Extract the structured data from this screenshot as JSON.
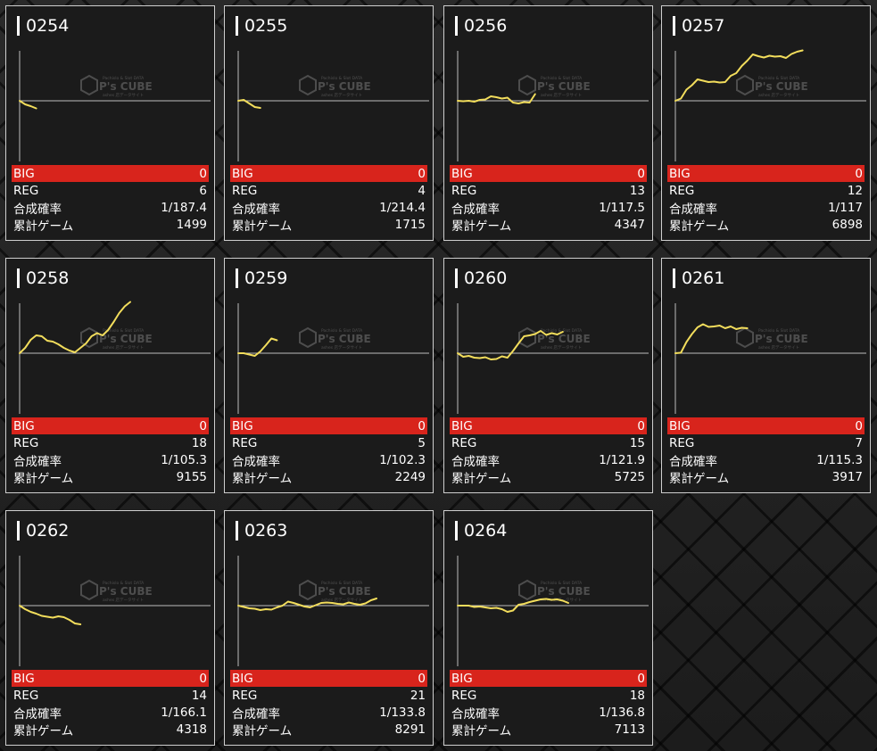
{
  "labels": {
    "big": "BIG",
    "reg": "REG",
    "rate": "合成確率",
    "games": "累計ゲーム"
  },
  "watermark": {
    "tagline": "Pachislo & Slot DATA",
    "brand": "P's CUBE",
    "sub": "ashes 店データサイト"
  },
  "colors": {
    "line": "#f2dd5c",
    "big_bar": "#d8241c",
    "panel": "#1b1b1b"
  },
  "machines": [
    {
      "id": "0254",
      "big": "0",
      "reg": "6",
      "rate": "1/187.4",
      "games": "1499",
      "trend": [
        0,
        -80,
        -120,
        -170
      ]
    },
    {
      "id": "0255",
      "big": "0",
      "reg": "4",
      "rate": "1/214.4",
      "games": "1715",
      "trend": [
        0,
        20,
        -60,
        -140,
        -160
      ]
    },
    {
      "id": "0256",
      "big": "0",
      "reg": "13",
      "rate": "1/117.5",
      "games": "4347",
      "trend": [
        0,
        -10,
        0,
        -20,
        20,
        30,
        100,
        80,
        50,
        70,
        -40,
        -60,
        -30,
        -40,
        150
      ]
    },
    {
      "id": "0257",
      "big": "0",
      "reg": "12",
      "rate": "1/117",
      "games": "6898",
      "trend": [
        0,
        50,
        250,
        350,
        480,
        450,
        420,
        430,
        410,
        420,
        560,
        620,
        780,
        900,
        1040,
        1000,
        970,
        1010,
        990,
        1000,
        960,
        1050,
        1100,
        1130
      ]
    },
    {
      "id": "0258",
      "big": "0",
      "reg": "18",
      "rate": "1/105.3",
      "games": "9155",
      "trend": [
        0,
        120,
        300,
        400,
        380,
        280,
        260,
        200,
        120,
        60,
        20,
        120,
        220,
        380,
        450,
        400,
        520,
        700,
        900,
        1050,
        1150
      ]
    },
    {
      "id": "0259",
      "big": "0",
      "reg": "5",
      "rate": "1/102.3",
      "games": "2249",
      "trend": [
        0,
        0,
        -30,
        -60,
        40,
        180,
        330,
        290
      ]
    },
    {
      "id": "0260",
      "big": "0",
      "reg": "15",
      "rate": "1/121.9",
      "games": "5725",
      "trend": [
        0,
        -80,
        -60,
        -100,
        -110,
        -90,
        -140,
        -130,
        -70,
        -100,
        50,
        220,
        380,
        400,
        430,
        500,
        410,
        450,
        420,
        480
      ]
    },
    {
      "id": "0261",
      "big": "0",
      "reg": "7",
      "rate": "1/115.3",
      "games": "3917",
      "trend": [
        0,
        10,
        250,
        430,
        580,
        650,
        590,
        600,
        620,
        560,
        600,
        540,
        570,
        560
      ]
    },
    {
      "id": "0262",
      "big": "0",
      "reg": "14",
      "rate": "1/166.1",
      "games": "4318",
      "trend": [
        0,
        -80,
        -140,
        -180,
        -230,
        -250,
        -270,
        -240,
        -260,
        -320,
        -400,
        -420
      ]
    },
    {
      "id": "0263",
      "big": "0",
      "reg": "21",
      "rate": "1/133.8",
      "games": "8291",
      "trend": [
        0,
        -30,
        -60,
        -70,
        -100,
        -80,
        -90,
        -40,
        0,
        90,
        60,
        20,
        -20,
        -40,
        10,
        60,
        70,
        60,
        40,
        30,
        70,
        40,
        20,
        50,
        120,
        160
      ]
    },
    {
      "id": "0264",
      "big": "0",
      "reg": "18",
      "rate": "1/136.8",
      "games": "7113",
      "trend": [
        0,
        0,
        0,
        -30,
        -20,
        -40,
        -60,
        -50,
        -80,
        -140,
        -110,
        20,
        40,
        80,
        110,
        140,
        150,
        130,
        140,
        110,
        60
      ]
    }
  ]
}
